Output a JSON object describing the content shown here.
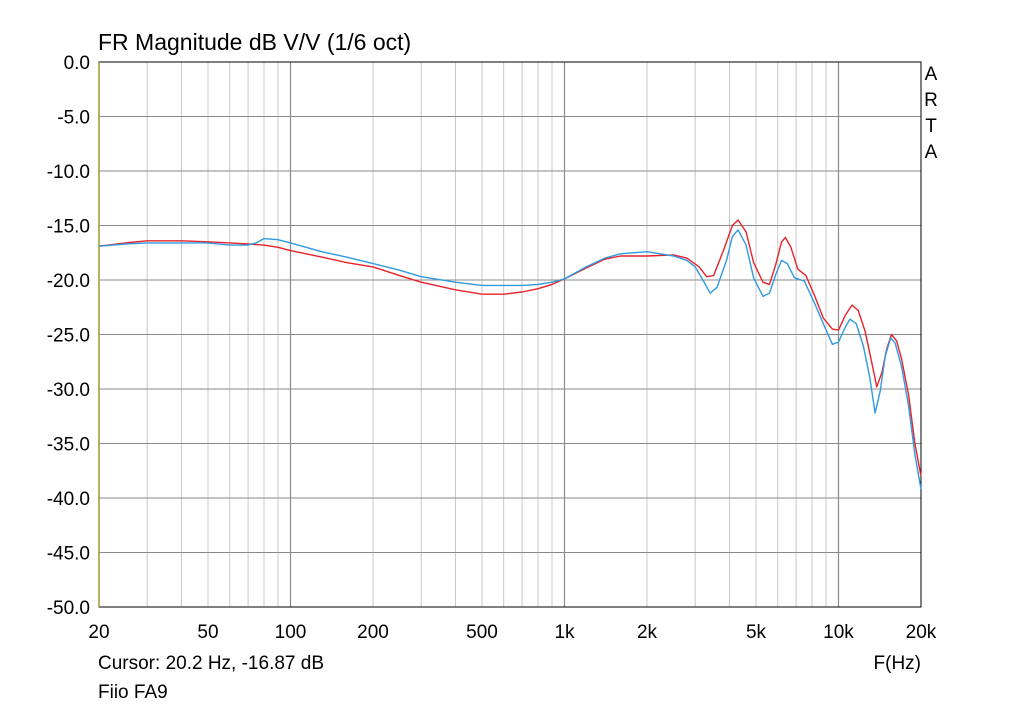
{
  "chart_data": {
    "type": "line",
    "title": "FR Magnitude dB V/V (1/6 oct)",
    "brand_letters": [
      "A",
      "R",
      "T",
      "A"
    ],
    "xlabel": "F(Hz)",
    "ylabel": "",
    "x_scale": "log",
    "xlim": [
      20,
      20000
    ],
    "ylim": [
      -50,
      0
    ],
    "y_ticks": [
      "0.0",
      "-5.0",
      "-10.0",
      "-15.0",
      "-20.0",
      "-25.0",
      "-30.0",
      "-35.0",
      "-40.0",
      "-45.0",
      "-50.0"
    ],
    "x_ticks": [
      {
        "value": 20,
        "label": "20"
      },
      {
        "value": 50,
        "label": "50"
      },
      {
        "value": 100,
        "label": "100"
      },
      {
        "value": 200,
        "label": "200"
      },
      {
        "value": 500,
        "label": "500"
      },
      {
        "value": 1000,
        "label": "1k"
      },
      {
        "value": 2000,
        "label": "2k"
      },
      {
        "value": 5000,
        "label": "5k"
      },
      {
        "value": 10000,
        "label": "10k"
      },
      {
        "value": 20000,
        "label": "20k"
      }
    ],
    "grid": true,
    "cursor_text": "Cursor: 20.2 Hz, -16.87 dB",
    "model_text": "Fiio FA9",
    "series": [
      {
        "color": "#e8222a",
        "points": [
          [
            20,
            -16.9
          ],
          [
            25,
            -16.6
          ],
          [
            30,
            -16.4
          ],
          [
            40,
            -16.4
          ],
          [
            50,
            -16.5
          ],
          [
            60,
            -16.6
          ],
          [
            70,
            -16.7
          ],
          [
            80,
            -16.8
          ],
          [
            90,
            -17.0
          ],
          [
            100,
            -17.3
          ],
          [
            130,
            -17.9
          ],
          [
            160,
            -18.4
          ],
          [
            200,
            -18.8
          ],
          [
            250,
            -19.6
          ],
          [
            300,
            -20.2
          ],
          [
            400,
            -20.9
          ],
          [
            500,
            -21.3
          ],
          [
            600,
            -21.3
          ],
          [
            700,
            -21.1
          ],
          [
            800,
            -20.8
          ],
          [
            900,
            -20.4
          ],
          [
            1000,
            -19.9
          ],
          [
            1200,
            -18.9
          ],
          [
            1400,
            -18.1
          ],
          [
            1600,
            -17.8
          ],
          [
            2000,
            -17.8
          ],
          [
            2500,
            -17.7
          ],
          [
            2800,
            -18.0
          ],
          [
            3100,
            -18.8
          ],
          [
            3300,
            -19.7
          ],
          [
            3500,
            -19.6
          ],
          [
            3800,
            -17.3
          ],
          [
            4100,
            -15.0
          ],
          [
            4300,
            -14.5
          ],
          [
            4600,
            -15.6
          ],
          [
            4900,
            -18.4
          ],
          [
            5300,
            -20.2
          ],
          [
            5600,
            -20.4
          ],
          [
            5900,
            -18.6
          ],
          [
            6200,
            -16.5
          ],
          [
            6400,
            -16.1
          ],
          [
            6700,
            -17.0
          ],
          [
            7100,
            -19.0
          ],
          [
            7600,
            -19.6
          ],
          [
            8200,
            -21.5
          ],
          [
            8800,
            -23.5
          ],
          [
            9500,
            -24.5
          ],
          [
            10000,
            -24.6
          ],
          [
            10600,
            -23.2
          ],
          [
            11200,
            -22.3
          ],
          [
            11800,
            -22.8
          ],
          [
            12500,
            -24.7
          ],
          [
            13200,
            -27.5
          ],
          [
            13800,
            -29.8
          ],
          [
            14400,
            -28.5
          ],
          [
            15000,
            -26.3
          ],
          [
            15600,
            -25.0
          ],
          [
            16300,
            -25.6
          ],
          [
            17000,
            -27.3
          ],
          [
            18000,
            -30.5
          ],
          [
            19000,
            -35.0
          ],
          [
            20000,
            -38.0
          ]
        ]
      },
      {
        "color": "#2f9ae0",
        "points": [
          [
            20,
            -16.9
          ],
          [
            25,
            -16.7
          ],
          [
            30,
            -16.6
          ],
          [
            40,
            -16.6
          ],
          [
            50,
            -16.6
          ],
          [
            60,
            -16.8
          ],
          [
            70,
            -16.8
          ],
          [
            75,
            -16.6
          ],
          [
            80,
            -16.2
          ],
          [
            90,
            -16.3
          ],
          [
            100,
            -16.6
          ],
          [
            130,
            -17.4
          ],
          [
            160,
            -17.9
          ],
          [
            200,
            -18.5
          ],
          [
            250,
            -19.1
          ],
          [
            300,
            -19.7
          ],
          [
            400,
            -20.2
          ],
          [
            500,
            -20.5
          ],
          [
            600,
            -20.5
          ],
          [
            700,
            -20.5
          ],
          [
            800,
            -20.4
          ],
          [
            900,
            -20.2
          ],
          [
            1000,
            -19.9
          ],
          [
            1200,
            -18.8
          ],
          [
            1400,
            -18.0
          ],
          [
            1600,
            -17.6
          ],
          [
            2000,
            -17.4
          ],
          [
            2500,
            -17.8
          ],
          [
            2800,
            -18.2
          ],
          [
            3000,
            -18.8
          ],
          [
            3200,
            -20.0
          ],
          [
            3400,
            -21.2
          ],
          [
            3600,
            -20.7
          ],
          [
            3900,
            -18.2
          ],
          [
            4100,
            -16.0
          ],
          [
            4300,
            -15.4
          ],
          [
            4600,
            -16.8
          ],
          [
            4900,
            -19.8
          ],
          [
            5300,
            -21.5
          ],
          [
            5600,
            -21.2
          ],
          [
            5900,
            -19.5
          ],
          [
            6200,
            -18.2
          ],
          [
            6500,
            -18.5
          ],
          [
            6900,
            -19.8
          ],
          [
            7500,
            -20.1
          ],
          [
            8200,
            -22.2
          ],
          [
            8800,
            -24.0
          ],
          [
            9500,
            -25.9
          ],
          [
            10000,
            -25.7
          ],
          [
            10500,
            -24.5
          ],
          [
            11000,
            -23.6
          ],
          [
            11600,
            -24.0
          ],
          [
            12300,
            -26.0
          ],
          [
            13000,
            -28.9
          ],
          [
            13600,
            -32.2
          ],
          [
            14200,
            -30.2
          ],
          [
            14800,
            -27.0
          ],
          [
            15500,
            -25.3
          ],
          [
            16100,
            -25.8
          ],
          [
            17000,
            -28.0
          ],
          [
            18000,
            -31.5
          ],
          [
            19000,
            -36.0
          ],
          [
            20000,
            -39.2
          ]
        ]
      }
    ]
  }
}
